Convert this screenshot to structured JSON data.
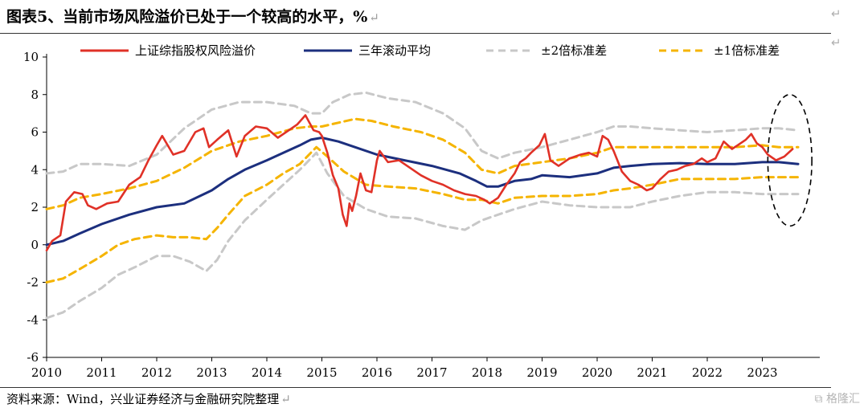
{
  "title": "图表5、当前市场风险溢价已处于一个较高的水平，%",
  "return_mark": "↵",
  "source": "资料来源：Wind，兴业证券经济与金融研究院整理",
  "watermark": "格隆汇",
  "chart_data": {
    "type": "line",
    "xlabel": "",
    "ylabel": "",
    "x_ticks": [
      "2010",
      "2011",
      "2012",
      "2013",
      "2014",
      "2015",
      "2016",
      "2017",
      "2018",
      "2019",
      "2020",
      "2021",
      "2022",
      "2023"
    ],
    "y_ticks": [
      10,
      8,
      6,
      4,
      2,
      0,
      -2,
      -4,
      -6
    ],
    "xlim": [
      2010.0,
      2023.7
    ],
    "ylim": [
      -6,
      10
    ],
    "grid": false,
    "legend_position": "top",
    "series": [
      {
        "name": "上证综指股权风险溢价",
        "color": "#e03127",
        "style": "solid",
        "points": [
          [
            2010.0,
            -0.3
          ],
          [
            2010.1,
            0.2
          ],
          [
            2010.25,
            0.5
          ],
          [
            2010.35,
            2.3
          ],
          [
            2010.5,
            2.8
          ],
          [
            2010.65,
            2.7
          ],
          [
            2010.75,
            2.1
          ],
          [
            2010.9,
            1.9
          ],
          [
            2011.1,
            2.2
          ],
          [
            2011.3,
            2.3
          ],
          [
            2011.5,
            3.2
          ],
          [
            2011.7,
            3.6
          ],
          [
            2011.85,
            4.5
          ],
          [
            2012.0,
            5.3
          ],
          [
            2012.1,
            5.8
          ],
          [
            2012.3,
            4.8
          ],
          [
            2012.5,
            5.0
          ],
          [
            2012.7,
            6.0
          ],
          [
            2012.85,
            6.2
          ],
          [
            2012.95,
            5.2
          ],
          [
            2013.1,
            5.6
          ],
          [
            2013.3,
            6.1
          ],
          [
            2013.45,
            4.7
          ],
          [
            2013.6,
            5.8
          ],
          [
            2013.8,
            6.3
          ],
          [
            2014.0,
            6.2
          ],
          [
            2014.2,
            5.7
          ],
          [
            2014.4,
            6.1
          ],
          [
            2014.55,
            6.4
          ],
          [
            2014.7,
            6.9
          ],
          [
            2014.85,
            6.1
          ],
          [
            2014.95,
            6.0
          ],
          [
            2015.0,
            5.8
          ],
          [
            2015.1,
            4.9
          ],
          [
            2015.2,
            3.7
          ],
          [
            2015.3,
            3.0
          ],
          [
            2015.38,
            1.6
          ],
          [
            2015.45,
            1.0
          ],
          [
            2015.5,
            2.2
          ],
          [
            2015.55,
            1.8
          ],
          [
            2015.62,
            2.6
          ],
          [
            2015.7,
            3.8
          ],
          [
            2015.8,
            2.9
          ],
          [
            2015.9,
            2.8
          ],
          [
            2016.0,
            4.5
          ],
          [
            2016.05,
            5.0
          ],
          [
            2016.2,
            4.4
          ],
          [
            2016.4,
            4.5
          ],
          [
            2016.6,
            4.1
          ],
          [
            2016.8,
            3.7
          ],
          [
            2017.0,
            3.4
          ],
          [
            2017.2,
            3.2
          ],
          [
            2017.4,
            2.9
          ],
          [
            2017.6,
            2.7
          ],
          [
            2017.8,
            2.6
          ],
          [
            2017.95,
            2.4
          ],
          [
            2018.05,
            2.2
          ],
          [
            2018.2,
            2.5
          ],
          [
            2018.35,
            3.2
          ],
          [
            2018.5,
            3.8
          ],
          [
            2018.6,
            4.4
          ],
          [
            2018.7,
            4.6
          ],
          [
            2018.8,
            4.9
          ],
          [
            2018.95,
            5.3
          ],
          [
            2019.05,
            5.9
          ],
          [
            2019.15,
            4.5
          ],
          [
            2019.3,
            4.2
          ],
          [
            2019.5,
            4.6
          ],
          [
            2019.7,
            4.8
          ],
          [
            2019.85,
            4.9
          ],
          [
            2020.0,
            4.7
          ],
          [
            2020.1,
            5.8
          ],
          [
            2020.2,
            5.6
          ],
          [
            2020.3,
            5.0
          ],
          [
            2020.45,
            3.9
          ],
          [
            2020.6,
            3.4
          ],
          [
            2020.75,
            3.2
          ],
          [
            2020.9,
            2.9
          ],
          [
            2021.0,
            3.0
          ],
          [
            2021.15,
            3.5
          ],
          [
            2021.3,
            3.9
          ],
          [
            2021.45,
            4.0
          ],
          [
            2021.6,
            4.2
          ],
          [
            2021.75,
            4.3
          ],
          [
            2021.9,
            4.6
          ],
          [
            2022.0,
            4.4
          ],
          [
            2022.15,
            4.6
          ],
          [
            2022.3,
            5.5
          ],
          [
            2022.45,
            5.1
          ],
          [
            2022.55,
            5.3
          ],
          [
            2022.7,
            5.6
          ],
          [
            2022.8,
            5.9
          ],
          [
            2022.9,
            5.4
          ],
          [
            2023.0,
            5.2
          ],
          [
            2023.1,
            4.8
          ],
          [
            2023.25,
            4.5
          ],
          [
            2023.4,
            4.7
          ],
          [
            2023.55,
            5.1
          ]
        ]
      },
      {
        "name": "三年滚动平均",
        "color": "#1c2f7e",
        "style": "solid",
        "points": [
          [
            2010.0,
            0.0
          ],
          [
            2010.3,
            0.2
          ],
          [
            2010.6,
            0.6
          ],
          [
            2011.0,
            1.1
          ],
          [
            2011.5,
            1.6
          ],
          [
            2012.0,
            2.0
          ],
          [
            2012.5,
            2.2
          ],
          [
            2013.0,
            2.9
          ],
          [
            2013.3,
            3.5
          ],
          [
            2013.6,
            4.0
          ],
          [
            2014.0,
            4.5
          ],
          [
            2014.3,
            4.9
          ],
          [
            2014.6,
            5.3
          ],
          [
            2014.8,
            5.6
          ],
          [
            2015.0,
            5.7
          ],
          [
            2015.3,
            5.5
          ],
          [
            2015.6,
            5.2
          ],
          [
            2016.0,
            4.8
          ],
          [
            2016.5,
            4.5
          ],
          [
            2017.0,
            4.2
          ],
          [
            2017.5,
            3.8
          ],
          [
            2017.8,
            3.4
          ],
          [
            2018.0,
            3.1
          ],
          [
            2018.2,
            3.1
          ],
          [
            2018.5,
            3.4
          ],
          [
            2018.8,
            3.5
          ],
          [
            2019.0,
            3.7
          ],
          [
            2019.5,
            3.6
          ],
          [
            2020.0,
            3.8
          ],
          [
            2020.3,
            4.1
          ],
          [
            2020.6,
            4.2
          ],
          [
            2021.0,
            4.3
          ],
          [
            2021.5,
            4.35
          ],
          [
            2022.0,
            4.3
          ],
          [
            2022.5,
            4.3
          ],
          [
            2023.0,
            4.4
          ],
          [
            2023.3,
            4.4
          ],
          [
            2023.65,
            4.3
          ]
        ]
      },
      {
        "name": "±2倍标准差",
        "color": "#c8c8c8",
        "style": "dashed",
        "points": [
          [
            2010.0,
            3.8
          ],
          [
            2010.3,
            3.9
          ],
          [
            2010.6,
            4.3
          ],
          [
            2011.0,
            4.3
          ],
          [
            2011.5,
            4.2
          ],
          [
            2012.0,
            4.8
          ],
          [
            2012.5,
            6.2
          ],
          [
            2013.0,
            7.2
          ],
          [
            2013.5,
            7.6
          ],
          [
            2014.0,
            7.6
          ],
          [
            2014.5,
            7.4
          ],
          [
            2014.8,
            7.0
          ],
          [
            2015.0,
            7.0
          ],
          [
            2015.2,
            7.6
          ],
          [
            2015.5,
            8.0
          ],
          [
            2015.8,
            8.1
          ],
          [
            2016.2,
            7.8
          ],
          [
            2016.7,
            7.6
          ],
          [
            2017.2,
            7.0
          ],
          [
            2017.6,
            6.2
          ],
          [
            2017.9,
            5.0
          ],
          [
            2018.2,
            4.6
          ],
          [
            2018.5,
            4.9
          ],
          [
            2019.0,
            5.2
          ],
          [
            2019.5,
            5.6
          ],
          [
            2020.0,
            6.0
          ],
          [
            2020.3,
            6.3
          ],
          [
            2020.6,
            6.3
          ],
          [
            2021.0,
            6.2
          ],
          [
            2021.5,
            6.1
          ],
          [
            2022.0,
            6.0
          ],
          [
            2022.5,
            6.1
          ],
          [
            2023.0,
            6.2
          ],
          [
            2023.3,
            6.2
          ],
          [
            2023.65,
            6.1
          ]
        ]
      },
      {
        "name": "±2倍标准差 下限",
        "color": "#c8c8c8",
        "style": "dashed",
        "points": [
          [
            2010.0,
            -3.9
          ],
          [
            2010.3,
            -3.6
          ],
          [
            2010.6,
            -3.0
          ],
          [
            2011.0,
            -2.3
          ],
          [
            2011.3,
            -1.6
          ],
          [
            2011.6,
            -1.2
          ],
          [
            2012.0,
            -0.6
          ],
          [
            2012.3,
            -0.6
          ],
          [
            2012.6,
            -0.9
          ],
          [
            2012.9,
            -1.4
          ],
          [
            2013.1,
            -0.8
          ],
          [
            2013.3,
            0.2
          ],
          [
            2013.6,
            1.3
          ],
          [
            2014.0,
            2.4
          ],
          [
            2014.3,
            3.2
          ],
          [
            2014.6,
            4.0
          ],
          [
            2014.9,
            4.9
          ],
          [
            2015.1,
            3.8
          ],
          [
            2015.4,
            2.6
          ],
          [
            2015.8,
            1.9
          ],
          [
            2016.2,
            1.5
          ],
          [
            2016.7,
            1.4
          ],
          [
            2017.2,
            1.0
          ],
          [
            2017.6,
            0.8
          ],
          [
            2017.9,
            1.3
          ],
          [
            2018.2,
            1.6
          ],
          [
            2018.5,
            1.9
          ],
          [
            2019.0,
            2.3
          ],
          [
            2019.5,
            2.1
          ],
          [
            2020.0,
            2.0
          ],
          [
            2020.3,
            2.0
          ],
          [
            2020.6,
            2.0
          ],
          [
            2021.0,
            2.3
          ],
          [
            2021.5,
            2.6
          ],
          [
            2022.0,
            2.8
          ],
          [
            2022.5,
            2.8
          ],
          [
            2023.0,
            2.7
          ],
          [
            2023.65,
            2.7
          ]
        ]
      },
      {
        "name": "±1倍标准差",
        "color": "#f5b400",
        "style": "dashed",
        "points": [
          [
            2010.0,
            1.9
          ],
          [
            2010.3,
            2.1
          ],
          [
            2010.6,
            2.5
          ],
          [
            2011.0,
            2.7
          ],
          [
            2011.5,
            3.0
          ],
          [
            2012.0,
            3.4
          ],
          [
            2012.5,
            4.1
          ],
          [
            2013.0,
            5.0
          ],
          [
            2013.5,
            5.5
          ],
          [
            2014.0,
            5.8
          ],
          [
            2014.5,
            6.2
          ],
          [
            2014.8,
            6.3
          ],
          [
            2015.0,
            6.3
          ],
          [
            2015.3,
            6.5
          ],
          [
            2015.6,
            6.7
          ],
          [
            2015.9,
            6.6
          ],
          [
            2016.3,
            6.3
          ],
          [
            2016.8,
            6.0
          ],
          [
            2017.2,
            5.6
          ],
          [
            2017.6,
            4.9
          ],
          [
            2017.9,
            4.0
          ],
          [
            2018.2,
            3.8
          ],
          [
            2018.5,
            4.2
          ],
          [
            2019.0,
            4.4
          ],
          [
            2019.5,
            4.6
          ],
          [
            2020.0,
            4.9
          ],
          [
            2020.3,
            5.2
          ],
          [
            2020.6,
            5.2
          ],
          [
            2021.0,
            5.2
          ],
          [
            2021.5,
            5.2
          ],
          [
            2022.0,
            5.2
          ],
          [
            2022.5,
            5.2
          ],
          [
            2023.0,
            5.3
          ],
          [
            2023.3,
            5.2
          ],
          [
            2023.65,
            5.2
          ]
        ]
      },
      {
        "name": "±1倍标准差 下限",
        "color": "#f5b400",
        "style": "dashed",
        "points": [
          [
            2010.0,
            -2.0
          ],
          [
            2010.3,
            -1.8
          ],
          [
            2010.6,
            -1.3
          ],
          [
            2011.0,
            -0.6
          ],
          [
            2011.3,
            0.0
          ],
          [
            2011.6,
            0.3
          ],
          [
            2012.0,
            0.5
          ],
          [
            2012.3,
            0.4
          ],
          [
            2012.6,
            0.4
          ],
          [
            2012.9,
            0.3
          ],
          [
            2013.1,
            0.9
          ],
          [
            2013.3,
            1.6
          ],
          [
            2013.6,
            2.6
          ],
          [
            2014.0,
            3.2
          ],
          [
            2014.3,
            3.8
          ],
          [
            2014.6,
            4.3
          ],
          [
            2014.9,
            5.2
          ],
          [
            2015.1,
            4.7
          ],
          [
            2015.4,
            3.9
          ],
          [
            2015.8,
            3.2
          ],
          [
            2016.2,
            3.1
          ],
          [
            2016.7,
            3.0
          ],
          [
            2017.2,
            2.7
          ],
          [
            2017.6,
            2.4
          ],
          [
            2017.9,
            2.4
          ],
          [
            2018.2,
            2.2
          ],
          [
            2018.5,
            2.5
          ],
          [
            2019.0,
            2.6
          ],
          [
            2019.5,
            2.6
          ],
          [
            2020.0,
            2.7
          ],
          [
            2020.3,
            2.9
          ],
          [
            2020.6,
            3.0
          ],
          [
            2021.0,
            3.2
          ],
          [
            2021.5,
            3.5
          ],
          [
            2022.0,
            3.5
          ],
          [
            2022.5,
            3.5
          ],
          [
            2023.0,
            3.6
          ],
          [
            2023.65,
            3.6
          ]
        ]
      }
    ],
    "legend": [
      {
        "label": "上证综指股权风险溢价",
        "color": "#e03127",
        "style": "solid"
      },
      {
        "label": "三年滚动平均",
        "color": "#1c2f7e",
        "style": "solid"
      },
      {
        "label": "±2倍标准差",
        "color": "#c8c8c8",
        "style": "dashed"
      },
      {
        "label": "±1倍标准差",
        "color": "#f5b400",
        "style": "dashed"
      }
    ],
    "annotations": [
      {
        "type": "ellipse",
        "style": "dashed",
        "color": "#000000",
        "x_range": [
          2023.1,
          2023.9
        ],
        "y_range": [
          1.0,
          8.0
        ]
      }
    ]
  }
}
